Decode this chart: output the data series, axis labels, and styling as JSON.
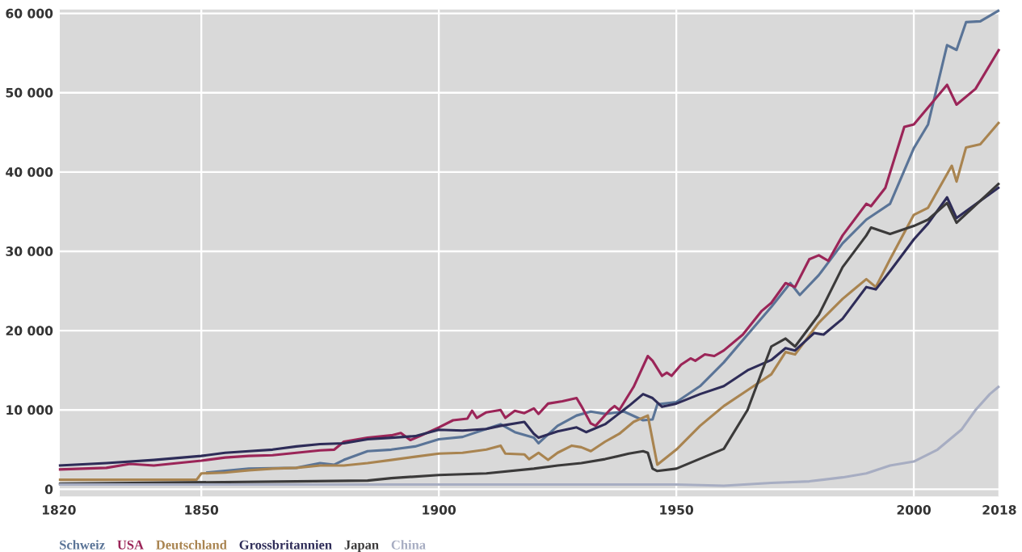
{
  "chart_data": {
    "type": "line",
    "xlim": [
      1820,
      2018
    ],
    "ylim": [
      -900,
      60500
    ],
    "xticks": [
      1820,
      1850,
      1900,
      1950,
      2000,
      2018
    ],
    "yticks": [
      0,
      {
        "value": 10000,
        "label": "10 000"
      },
      {
        "value": 20000,
        "label": "20 000"
      },
      {
        "value": 30000,
        "label": "30 000"
      },
      {
        "value": 40000,
        "label": "40 000"
      },
      {
        "value": 50000,
        "label": "50 000"
      },
      {
        "value": 60000,
        "label": "60 000"
      }
    ],
    "grid": true,
    "legend": "bottom left",
    "series": [
      {
        "name": "Schweiz",
        "color": "#5a7497",
        "x": [
          1851,
          1860,
          1870,
          1875,
          1878,
          1880,
          1885,
          1890,
          1895,
          1900,
          1905,
          1910,
          1913,
          1916,
          1920,
          1921,
          1925,
          1929,
          1932,
          1935,
          1939,
          1943,
          1945,
          1946,
          1950,
          1955,
          1960,
          1965,
          1970,
          1974,
          1976,
          1980,
          1985,
          1990,
          1995,
          2000,
          2003,
          2007,
          2009,
          2011,
          2014,
          2018
        ],
        "values": [
          2100,
          2600,
          2700,
          3300,
          3100,
          3700,
          4800,
          5000,
          5400,
          6300,
          6600,
          7600,
          8200,
          7200,
          6500,
          5800,
          8000,
          9300,
          9800,
          9500,
          9800,
          8700,
          8800,
          10700,
          11000,
          13000,
          16000,
          19500,
          23000,
          26000,
          24500,
          27000,
          31000,
          34000,
          36000,
          43000,
          46000,
          56000,
          55400,
          58900,
          59000,
          60400
        ]
      },
      {
        "name": "USA",
        "color": "#9b2558",
        "x": [
          1820,
          1830,
          1835,
          1840,
          1850,
          1855,
          1860,
          1865,
          1870,
          1875,
          1878,
          1880,
          1885,
          1890,
          1892,
          1894,
          1896,
          1900,
          1903,
          1906,
          1907,
          1908,
          1910,
          1913,
          1914,
          1916,
          1918,
          1920,
          1921,
          1923,
          1926,
          1929,
          1930,
          1932,
          1933,
          1936,
          1937,
          1938,
          1941,
          1944,
          1945,
          1947,
          1948,
          1949,
          1951,
          1953,
          1954,
          1956,
          1958,
          1960,
          1964,
          1968,
          1970,
          1973,
          1975,
          1978,
          1980,
          1982,
          1985,
          1990,
          1991,
          1994,
          1998,
          2000,
          2007,
          2009,
          2013,
          2018
        ],
        "values": [
          2500,
          2700,
          3200,
          3000,
          3600,
          4000,
          4200,
          4300,
          4600,
          4900,
          5000,
          6000,
          6500,
          6800,
          7100,
          6200,
          6700,
          7800,
          8700,
          8900,
          9900,
          9000,
          9700,
          10000,
          9000,
          9900,
          9600,
          10200,
          9500,
          10800,
          11100,
          11500,
          10500,
          8300,
          8000,
          10000,
          10500,
          10000,
          12900,
          16800,
          16200,
          14300,
          14700,
          14300,
          15700,
          16500,
          16200,
          17000,
          16800,
          17500,
          19500,
          22500,
          23500,
          26000,
          25500,
          29000,
          29500,
          28800,
          32000,
          36000,
          35700,
          38000,
          45700,
          46000,
          51000,
          48500,
          50500,
          55500
        ]
      },
      {
        "name": "Deutschland",
        "color": "#a98450",
        "x": [
          1820,
          1849,
          1850,
          1855,
          1860,
          1865,
          1870,
          1875,
          1880,
          1885,
          1890,
          1895,
          1900,
          1905,
          1910,
          1913,
          1914,
          1918,
          1919,
          1921,
          1923,
          1925,
          1928,
          1930,
          1932,
          1935,
          1938,
          1941,
          1944,
          1946,
          1950,
          1955,
          1960,
          1965,
          1970,
          1973,
          1975,
          1980,
          1985,
          1987,
          1990,
          1992,
          1995,
          2000,
          2003,
          2008,
          2009,
          2011,
          2014,
          2018
        ],
        "values": [
          1200,
          1200,
          2000,
          2100,
          2400,
          2600,
          2700,
          3000,
          3000,
          3300,
          3700,
          4100,
          4500,
          4600,
          5000,
          5500,
          4500,
          4400,
          3800,
          4600,
          3700,
          4600,
          5500,
          5300,
          4800,
          6000,
          7000,
          8500,
          9300,
          3100,
          5000,
          8000,
          10500,
          12500,
          14500,
          17300,
          17000,
          21000,
          24000,
          25000,
          26500,
          25500,
          29000,
          34600,
          35500,
          40800,
          38800,
          43100,
          43500,
          46300
        ]
      },
      {
        "name": "Grossbritannien",
        "color": "#2e2c58",
        "x": [
          1820,
          1830,
          1840,
          1850,
          1855,
          1860,
          1865,
          1870,
          1875,
          1880,
          1885,
          1890,
          1895,
          1900,
          1905,
          1910,
          1913,
          1918,
          1920,
          1921,
          1925,
          1929,
          1931,
          1935,
          1940,
          1943,
          1945,
          1947,
          1950,
          1955,
          1960,
          1965,
          1970,
          1973,
          1975,
          1979,
          1981,
          1985,
          1990,
          1992,
          1995,
          2000,
          2003,
          2007,
          2009,
          2018
        ],
        "values": [
          3000,
          3300,
          3700,
          4200,
          4600,
          4800,
          5000,
          5400,
          5700,
          5800,
          6300,
          6500,
          6700,
          7500,
          7400,
          7600,
          8000,
          8500,
          7000,
          6500,
          7300,
          7800,
          7200,
          8200,
          10500,
          12000,
          11500,
          10400,
          10800,
          12000,
          13000,
          15000,
          16300,
          17800,
          17500,
          19700,
          19500,
          21500,
          25500,
          25200,
          27500,
          31500,
          33500,
          36800,
          34200,
          38100
        ]
      },
      {
        "name": "Japan",
        "color": "#3b3a3a",
        "x": [
          1820,
          1870,
          1885,
          1890,
          1900,
          1910,
          1920,
          1925,
          1930,
          1935,
          1940,
          1943,
          1944,
          1945,
          1946,
          1950,
          1960,
          1965,
          1970,
          1973,
          1975,
          1980,
          1985,
          1990,
          1991,
          1995,
          2000,
          2003,
          2007,
          2009,
          2018
        ],
        "values": [
          700,
          1000,
          1100,
          1400,
          1800,
          2000,
          2600,
          3000,
          3300,
          3800,
          4500,
          4800,
          4600,
          2600,
          2300,
          2600,
          5100,
          10000,
          18000,
          19000,
          18000,
          22000,
          28000,
          32000,
          33000,
          32200,
          33200,
          34000,
          36100,
          33600,
          38600
        ]
      },
      {
        "name": "China",
        "color": "#a7adc2",
        "x": [
          1820,
          1950,
          1960,
          1970,
          1978,
          1985,
          1990,
          1995,
          2000,
          2005,
          2010,
          2013,
          2016,
          2018
        ],
        "values": [
          600,
          600,
          450,
          800,
          1000,
          1500,
          2000,
          3000,
          3500,
          5000,
          7500,
          10000,
          12000,
          13000
        ]
      }
    ]
  }
}
